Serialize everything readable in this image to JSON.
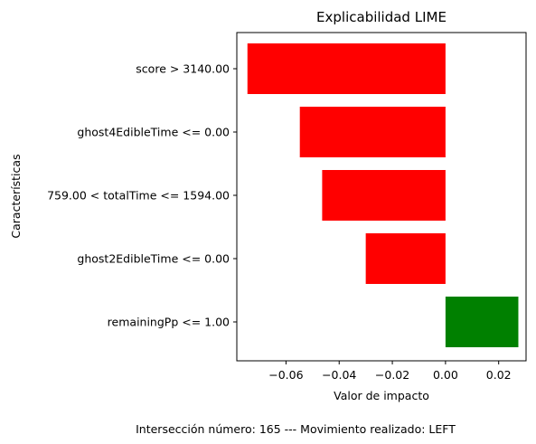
{
  "chart_data": {
    "type": "bar",
    "orientation": "horizontal",
    "title": "Explicabilidad LIME",
    "xlabel": "Valor de impacto",
    "ylabel": "Características",
    "categories": [
      "score > 3140.00",
      "ghost4EdibleTime <= 0.00",
      "759.00 < totalTime <= 1594.00",
      "ghost2EdibleTime <= 0.00",
      "remainingPp <= 1.00"
    ],
    "values": [
      -0.0745,
      -0.0548,
      -0.0464,
      -0.03,
      0.0274
    ],
    "bar_colors": [
      "#ff0000",
      "#ff0000",
      "#ff0000",
      "#ff0000",
      "#008000"
    ],
    "xlim": [
      -0.0785,
      0.0303
    ],
    "xticks": [
      -0.06,
      -0.04,
      -0.02,
      0.0,
      0.02
    ],
    "xtick_labels": [
      "−0.06",
      "−0.04",
      "−0.02",
      "0.00",
      "0.02"
    ],
    "grid": false,
    "legend": "none"
  },
  "footer": "Intersección número: 165 --- Movimiento realizado: LEFT"
}
